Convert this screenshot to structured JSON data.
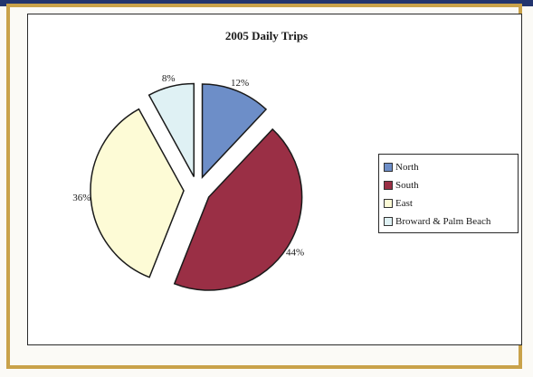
{
  "chart_data": {
    "type": "pie",
    "title": "2005 Daily Trips",
    "slices": [
      {
        "name": "North",
        "value": 12,
        "label": "12%",
        "color": "#6d8ec8"
      },
      {
        "name": "South",
        "value": 44,
        "label": "44%",
        "color": "#9a2f45"
      },
      {
        "name": "East",
        "value": 36,
        "label": "36%",
        "color": "#fdfbd6"
      },
      {
        "name": "Broward & Palm Beach",
        "value": 8,
        "label": "8%",
        "color": "#dff1f4"
      }
    ],
    "exploded": true,
    "legend_position": "right"
  }
}
